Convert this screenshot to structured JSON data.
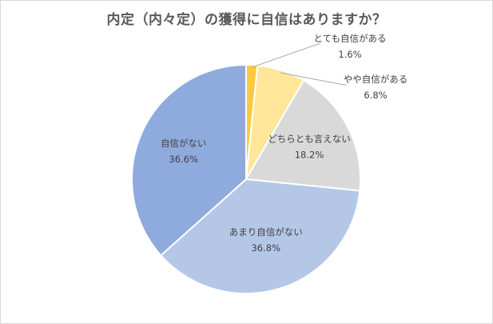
{
  "chart_data": {
    "type": "pie",
    "title": "内定（内々定）の獲得に自信はありますか？",
    "slices": [
      {
        "label": "とても自信がある",
        "value": 1.6,
        "value_label": "1.6%",
        "color": "#ffc83d"
      },
      {
        "label": "やや自信がある",
        "value": 6.8,
        "value_label": "6.8%",
        "color": "#ffe699"
      },
      {
        "label": "どちらとも言えない",
        "value": 18.2,
        "value_label": "18.2%",
        "color": "#d9d9d9"
      },
      {
        "label": "あまり自信がない",
        "value": 36.8,
        "value_label": "36.8%",
        "color": "#b4c7e7"
      },
      {
        "label": "自信がない",
        "value": 36.6,
        "value_label": "36.6%",
        "color": "#8faadc"
      }
    ],
    "start_angle": "12 o'clock",
    "direction": "clockwise",
    "legend": "none"
  }
}
